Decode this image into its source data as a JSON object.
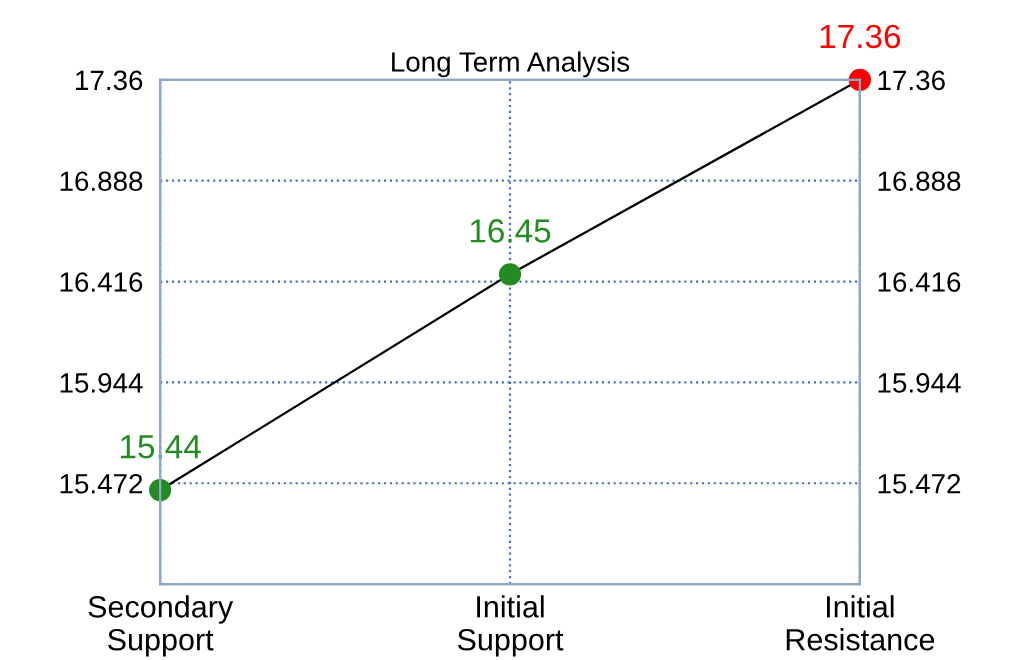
{
  "chart_data": {
    "type": "line",
    "title": "Long Term Analysis",
    "categories": [
      "Secondary\nSupport",
      "Initial\nSupport",
      "Initial\nResistance"
    ],
    "series": [
      {
        "values": [
          15.44,
          16.45,
          17.36
        ],
        "color": "#000000",
        "colors": [
          "#228b22",
          "#228b22",
          "#ff0000"
        ]
      }
    ],
    "data_labels": true,
    "marker": "circle",
    "line_style": "solid",
    "ylim": [
      15.0,
      17.36
    ],
    "yticks": [
      15.472,
      15.944,
      16.416,
      16.888,
      17.36
    ],
    "y2lim": [
      15.0,
      17.36
    ],
    "y2ticks": [
      15.472,
      15.944,
      16.416,
      16.888,
      17.36
    ],
    "grid": true,
    "legend": false
  }
}
